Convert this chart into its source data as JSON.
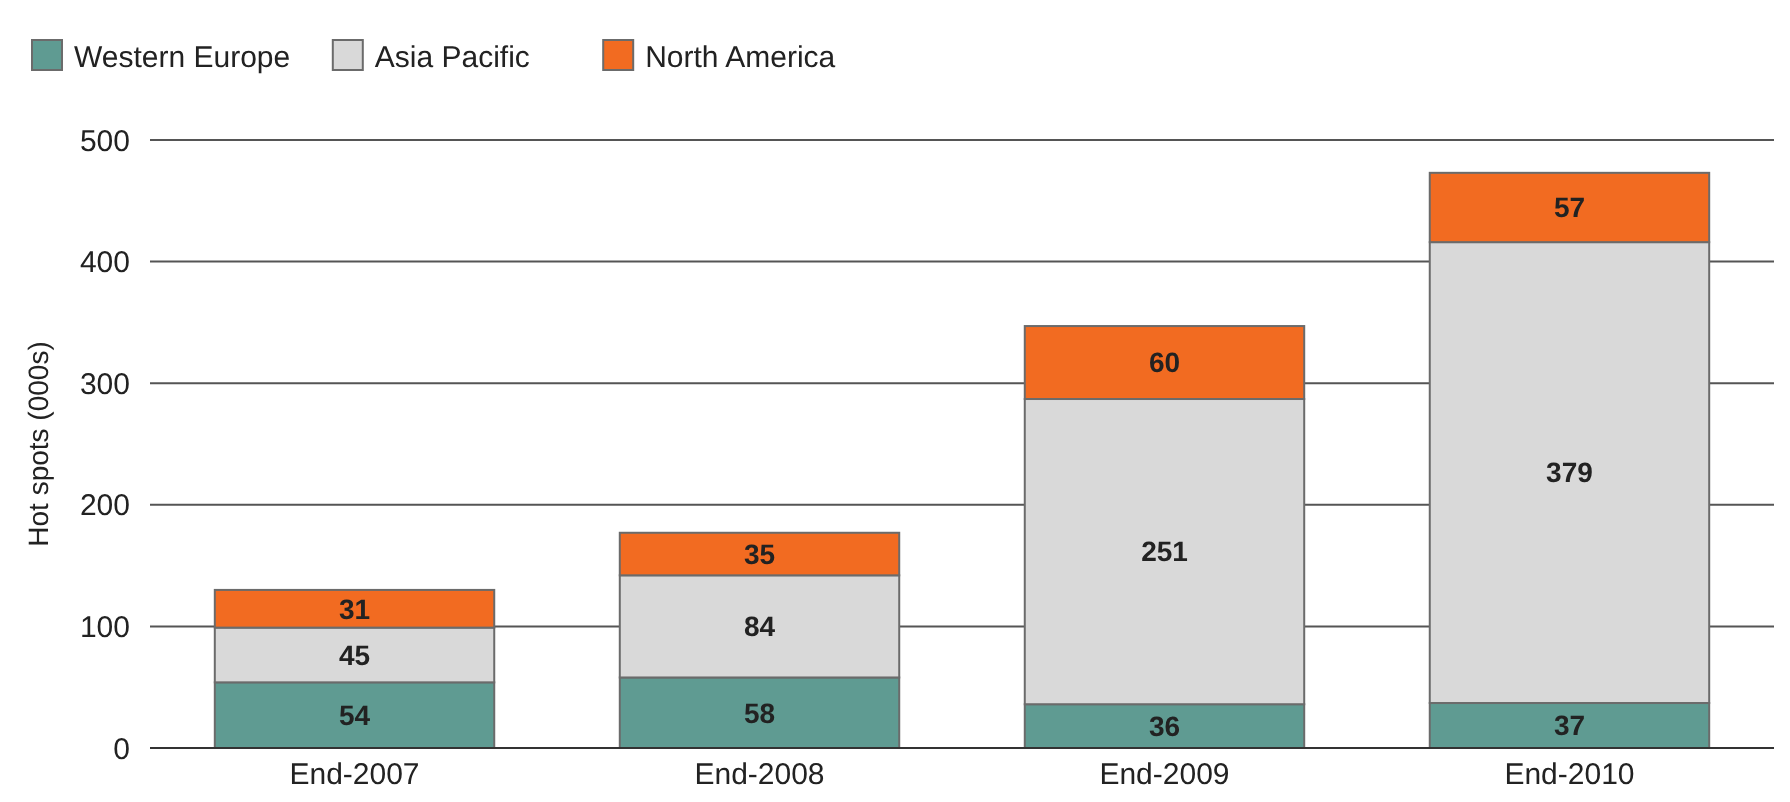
{
  "chart_data": {
    "type": "bar",
    "stacked": true,
    "ylabel": "Hot spots (000s)",
    "categories": [
      "End-2007",
      "End-2008",
      "End-2009",
      "End-2010"
    ],
    "series": [
      {
        "name": "Western Europe",
        "color": "#5f9b92",
        "values": [
          54,
          58,
          36,
          37
        ]
      },
      {
        "name": "Asia Pacific",
        "color": "#d9d9d9",
        "values": [
          45,
          84,
          251,
          379
        ]
      },
      {
        "name": "North America",
        "color": "#f26b21",
        "values": [
          31,
          35,
          60,
          57
        ]
      }
    ],
    "ylim": [
      0,
      500
    ],
    "yticks": [
      0,
      100,
      200,
      300,
      400,
      500
    ],
    "grid": "y",
    "legend": "top left",
    "data_labels": true
  }
}
